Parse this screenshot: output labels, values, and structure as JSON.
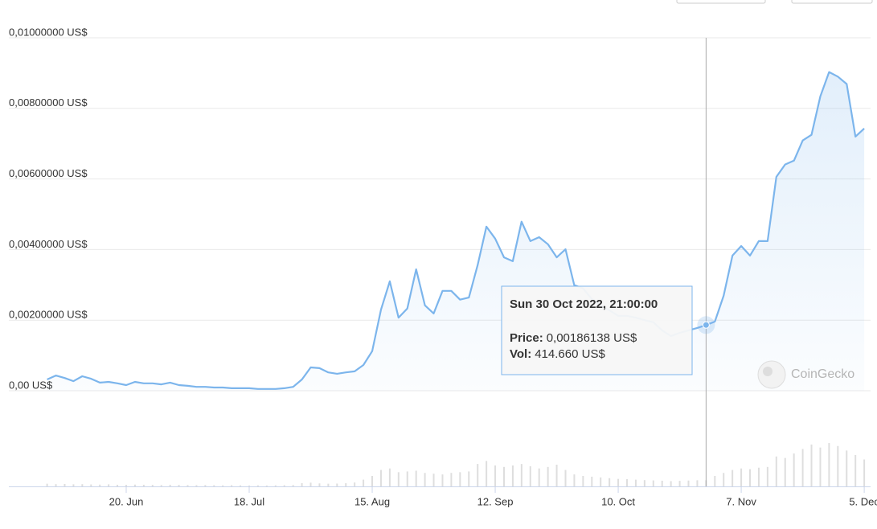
{
  "chart_data": {
    "type": "line",
    "categories": [
      null,
      null,
      null,
      null,
      null,
      null,
      null,
      null,
      null,
      null,
      null,
      null,
      null,
      "20. Jun",
      null,
      null,
      null,
      null,
      null,
      null,
      null,
      null,
      null,
      null,
      null,
      null,
      null,
      "18. Jul",
      null,
      null,
      null,
      null,
      null,
      null,
      null,
      null,
      null,
      null,
      null,
      null,
      null,
      "15. Aug",
      null,
      null,
      null,
      null,
      null,
      null,
      null,
      null,
      null,
      null,
      null,
      null,
      null,
      "12. Sep",
      null,
      null,
      null,
      null,
      null,
      null,
      null,
      null,
      null,
      null,
      null,
      null,
      null,
      "10. Oct",
      null,
      null,
      null,
      null,
      null,
      null,
      null,
      null,
      null,
      null,
      null,
      null,
      null,
      "7. Nov",
      null,
      null,
      null,
      null,
      null,
      null,
      null,
      null,
      null,
      null,
      null,
      null,
      null,
      "5. Dec"
    ],
    "series": [
      {
        "color": "#7cb5ec",
        "values": [
          null,
          null,
          null,
          null,
          0.00032,
          0.00043,
          0.00036,
          0.00027,
          0.00041,
          0.00034,
          0.00023,
          0.00025,
          0.00021,
          0.00016,
          0.00025,
          0.00021,
          0.00021,
          0.00018,
          0.00023,
          0.00016,
          0.00014,
          0.00011,
          0.00011,
          9e-05,
          9e-05,
          7e-05,
          7e-05,
          7e-05,
          5e-05,
          5e-05,
          5e-05,
          7e-05,
          0.00011,
          0.00032,
          0.00066,
          0.00064,
          0.00052,
          0.00048,
          0.00052,
          0.00055,
          0.00073,
          0.00112,
          0.0023,
          0.0031,
          0.00207,
          0.00233,
          0.00344,
          0.00242,
          0.00219,
          0.00283,
          0.00283,
          0.00258,
          0.00264,
          0.00356,
          0.00465,
          0.00431,
          0.00378,
          0.00367,
          0.00479,
          0.00424,
          0.00435,
          0.00415,
          0.00378,
          0.00401,
          0.00299,
          0.0029,
          0.0026,
          0.00242,
          0.00228,
          0.00212,
          0.00212,
          0.00207,
          0.002,
          0.00194,
          0.00171,
          0.00155,
          0.00164,
          0.00171,
          0.00178,
          0.00186138,
          0.00196,
          0.00269,
          0.00383,
          0.0041,
          0.00383,
          0.00424,
          0.00424,
          0.00606,
          0.00641,
          0.00652,
          0.00709,
          0.00725,
          0.00834,
          0.00903,
          0.0089,
          0.00869,
          0.0072,
          0.00743
        ]
      },
      {
        "type": "bar",
        "axis": "y2",
        "color": "#dedede",
        "values": [
          null,
          null,
          null,
          null,
          180000,
          150000,
          160000,
          140000,
          150000,
          130000,
          120000,
          140000,
          110000,
          100000,
          120000,
          110000,
          100000,
          90000,
          110000,
          100000,
          90000,
          80000,
          90000,
          80000,
          70000,
          80000,
          70000,
          60000,
          70000,
          60000,
          70000,
          80000,
          90000,
          220000,
          250000,
          200000,
          180000,
          190000,
          210000,
          260000,
          450000,
          700000,
          1100000,
          1200000,
          950000,
          1000000,
          1050000,
          900000,
          850000,
          800000,
          900000,
          950000,
          1000000,
          1500000,
          1700000,
          1400000,
          1300000,
          1400000,
          1500000,
          1350000,
          1200000,
          1300000,
          1450000,
          1100000,
          800000,
          700000,
          650000,
          600000,
          550000,
          500000,
          480000,
          450000,
          420000,
          400000,
          380000,
          350000,
          370000,
          390000,
          410000,
          414660,
          700000,
          900000,
          1100000,
          1200000,
          1150000,
          1250000,
          1300000,
          2000000,
          1900000,
          2200000,
          2500000,
          2800000,
          2600000,
          2900000,
          2700000,
          2400000,
          2100000,
          1800000
        ]
      }
    ],
    "ylim": [
      0,
      0.01
    ],
    "yticks": [
      {
        "value": 0,
        "label": "0,00 US$"
      },
      {
        "value": 0.002,
        "label": "0,00200000 US$"
      },
      {
        "value": 0.004,
        "label": "0,00400000 US$"
      },
      {
        "value": 0.006,
        "label": "0,00600000 US$"
      },
      {
        "value": 0.008,
        "label": "0,00800000 US$"
      },
      {
        "value": 0.01,
        "label": "0,01000000 US$"
      }
    ],
    "y2lim": [
      0,
      30000000
    ],
    "grid": true,
    "tooltip": {
      "title": "Sun 30 Oct 2022, 21:00:00",
      "rows": [
        {
          "label": "Price:",
          "value": "0,00186138 US$"
        },
        {
          "label": "Vol:",
          "value": "414.660 US$"
        }
      ]
    },
    "watermark": "CoinGecko"
  }
}
